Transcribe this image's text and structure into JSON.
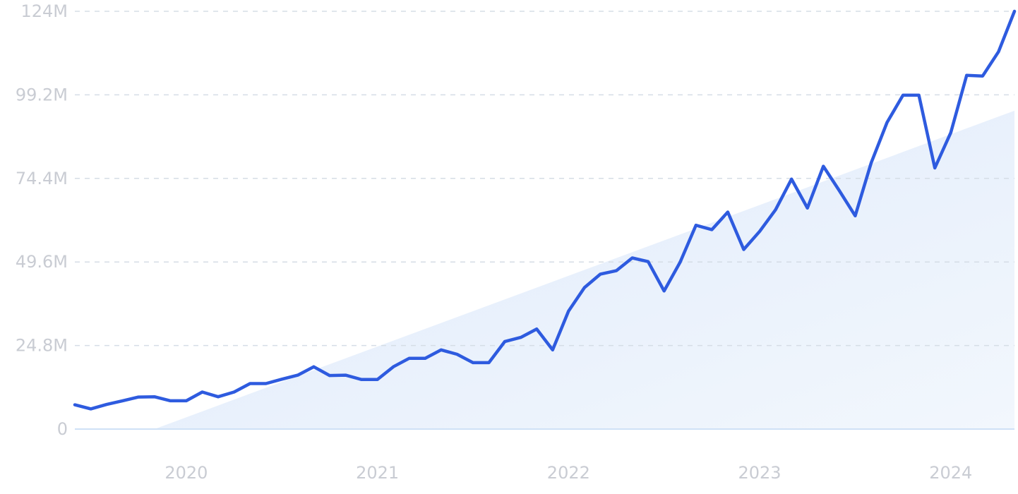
{
  "chart_data": {
    "type": "line",
    "title": "",
    "xlabel": "",
    "ylabel": "",
    "ylim": [
      0,
      124000000
    ],
    "xlim": [
      "2019-06",
      "2024-05"
    ],
    "y_ticks": [
      0,
      24800000,
      49600000,
      74400000,
      99200000,
      124000000
    ],
    "y_tick_labels": [
      "0",
      "24.8M",
      "49.6M",
      "74.4M",
      "99.2M",
      "124M"
    ],
    "x_ticks": [
      "2020-01",
      "2021-01",
      "2022-01",
      "2023-01",
      "2024-01"
    ],
    "x_tick_labels": [
      "2020",
      "2021",
      "2022",
      "2023",
      "2024"
    ],
    "grid": true,
    "legend": "none",
    "series": [
      {
        "color": "#2e5bdf",
        "x": [
          "2019-06",
          "2019-07",
          "2019-08",
          "2019-09",
          "2019-10",
          "2019-11",
          "2019-12",
          "2020-01",
          "2020-02",
          "2020-03",
          "2020-04",
          "2020-05",
          "2020-06",
          "2020-07",
          "2020-08",
          "2020-09",
          "2020-10",
          "2020-11",
          "2020-12",
          "2021-01",
          "2021-02",
          "2021-03",
          "2021-04",
          "2021-05",
          "2021-06",
          "2021-07",
          "2021-08",
          "2021-09",
          "2021-10",
          "2021-11",
          "2021-12",
          "2022-01",
          "2022-02",
          "2022-03",
          "2022-04",
          "2022-05",
          "2022-06",
          "2022-07",
          "2022-08",
          "2022-09",
          "2022-10",
          "2022-11",
          "2022-12",
          "2023-01",
          "2023-02",
          "2023-03",
          "2023-04",
          "2023-05",
          "2023-06",
          "2023-07",
          "2023-08",
          "2023-09",
          "2023-10",
          "2023-11",
          "2023-12",
          "2024-01",
          "2024-02",
          "2024-03",
          "2024-04",
          "2024-05"
        ],
        "values": [
          7200000,
          6000000,
          7300000,
          8400000,
          9500000,
          9600000,
          8400000,
          8400000,
          11000000,
          9600000,
          11000000,
          13500000,
          13500000,
          14800000,
          16000000,
          18500000,
          15900000,
          16000000,
          14700000,
          14700000,
          18500000,
          21000000,
          21000000,
          23500000,
          22200000,
          19700000,
          19700000,
          26000000,
          27200000,
          29700000,
          23500000,
          35000000,
          42000000,
          46000000,
          47000000,
          50800000,
          49700000,
          41000000,
          49500000,
          60500000,
          59200000,
          64400000,
          53300000,
          58700000,
          65100000,
          74200000,
          65600000,
          78000000,
          70800000,
          63300000,
          79000000,
          91000000,
          99100000,
          99100000,
          77500000,
          88000000,
          105000000,
          104800000,
          112000000,
          124000000
        ]
      },
      {
        "color": "#e7f1fc",
        "x": [
          "2019-11",
          "2024-05"
        ],
        "values": [
          0,
          94500000
        ]
      }
    ]
  }
}
